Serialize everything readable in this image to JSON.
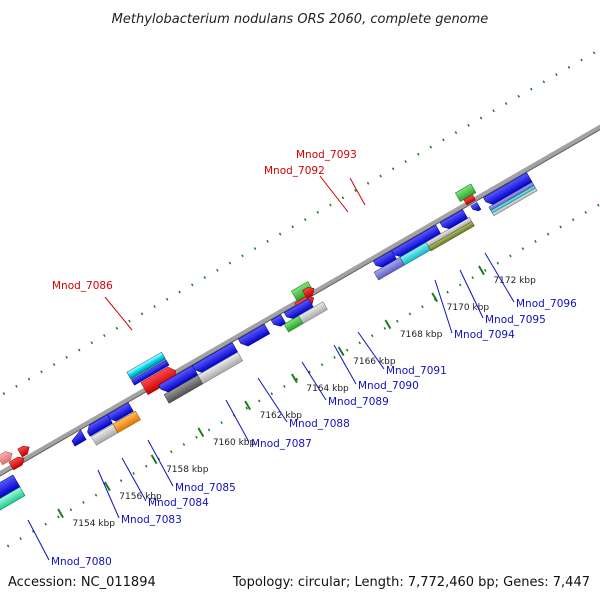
{
  "title": "Methylobacterium nodulans ORS 2060, complete genome",
  "footer": {
    "accession": "Accession: NC_011894",
    "summary": "Topology: circular; Length: 7,772,460 bp; Genes: 7,447"
  },
  "colors": {
    "backbone": "#8f8f8f",
    "tick": "#1f7a1f",
    "label_forward": "#d40000",
    "label_reverse": "#1010c0"
  },
  "ticks": [
    "7154 kbp",
    "7156 kbp",
    "7158 kbp",
    "7160 kbp",
    "7162 kbp",
    "7164 kbp",
    "7166 kbp",
    "7168 kbp",
    "7170 kbp",
    "7172 kbp"
  ],
  "labels": [
    {
      "name": "Mnod_7093",
      "strand": "forward"
    },
    {
      "name": "Mnod_7092",
      "strand": "forward"
    },
    {
      "name": "Mnod_7086",
      "strand": "forward"
    },
    {
      "name": "Mnod_7096",
      "strand": "reverse"
    },
    {
      "name": "Mnod_7095",
      "strand": "reverse"
    },
    {
      "name": "Mnod_7094",
      "strand": "reverse"
    },
    {
      "name": "Mnod_7091",
      "strand": "reverse"
    },
    {
      "name": "Mnod_7090",
      "strand": "reverse"
    },
    {
      "name": "Mnod_7089",
      "strand": "reverse"
    },
    {
      "name": "Mnod_7088",
      "strand": "reverse"
    },
    {
      "name": "Mnod_7087",
      "strand": "reverse"
    },
    {
      "name": "Mnod_7085",
      "strand": "reverse"
    },
    {
      "name": "Mnod_7084",
      "strand": "reverse"
    },
    {
      "name": "Mnod_7083",
      "strand": "reverse"
    },
    {
      "name": "Mnod_7080",
      "strand": "reverse"
    }
  ]
}
